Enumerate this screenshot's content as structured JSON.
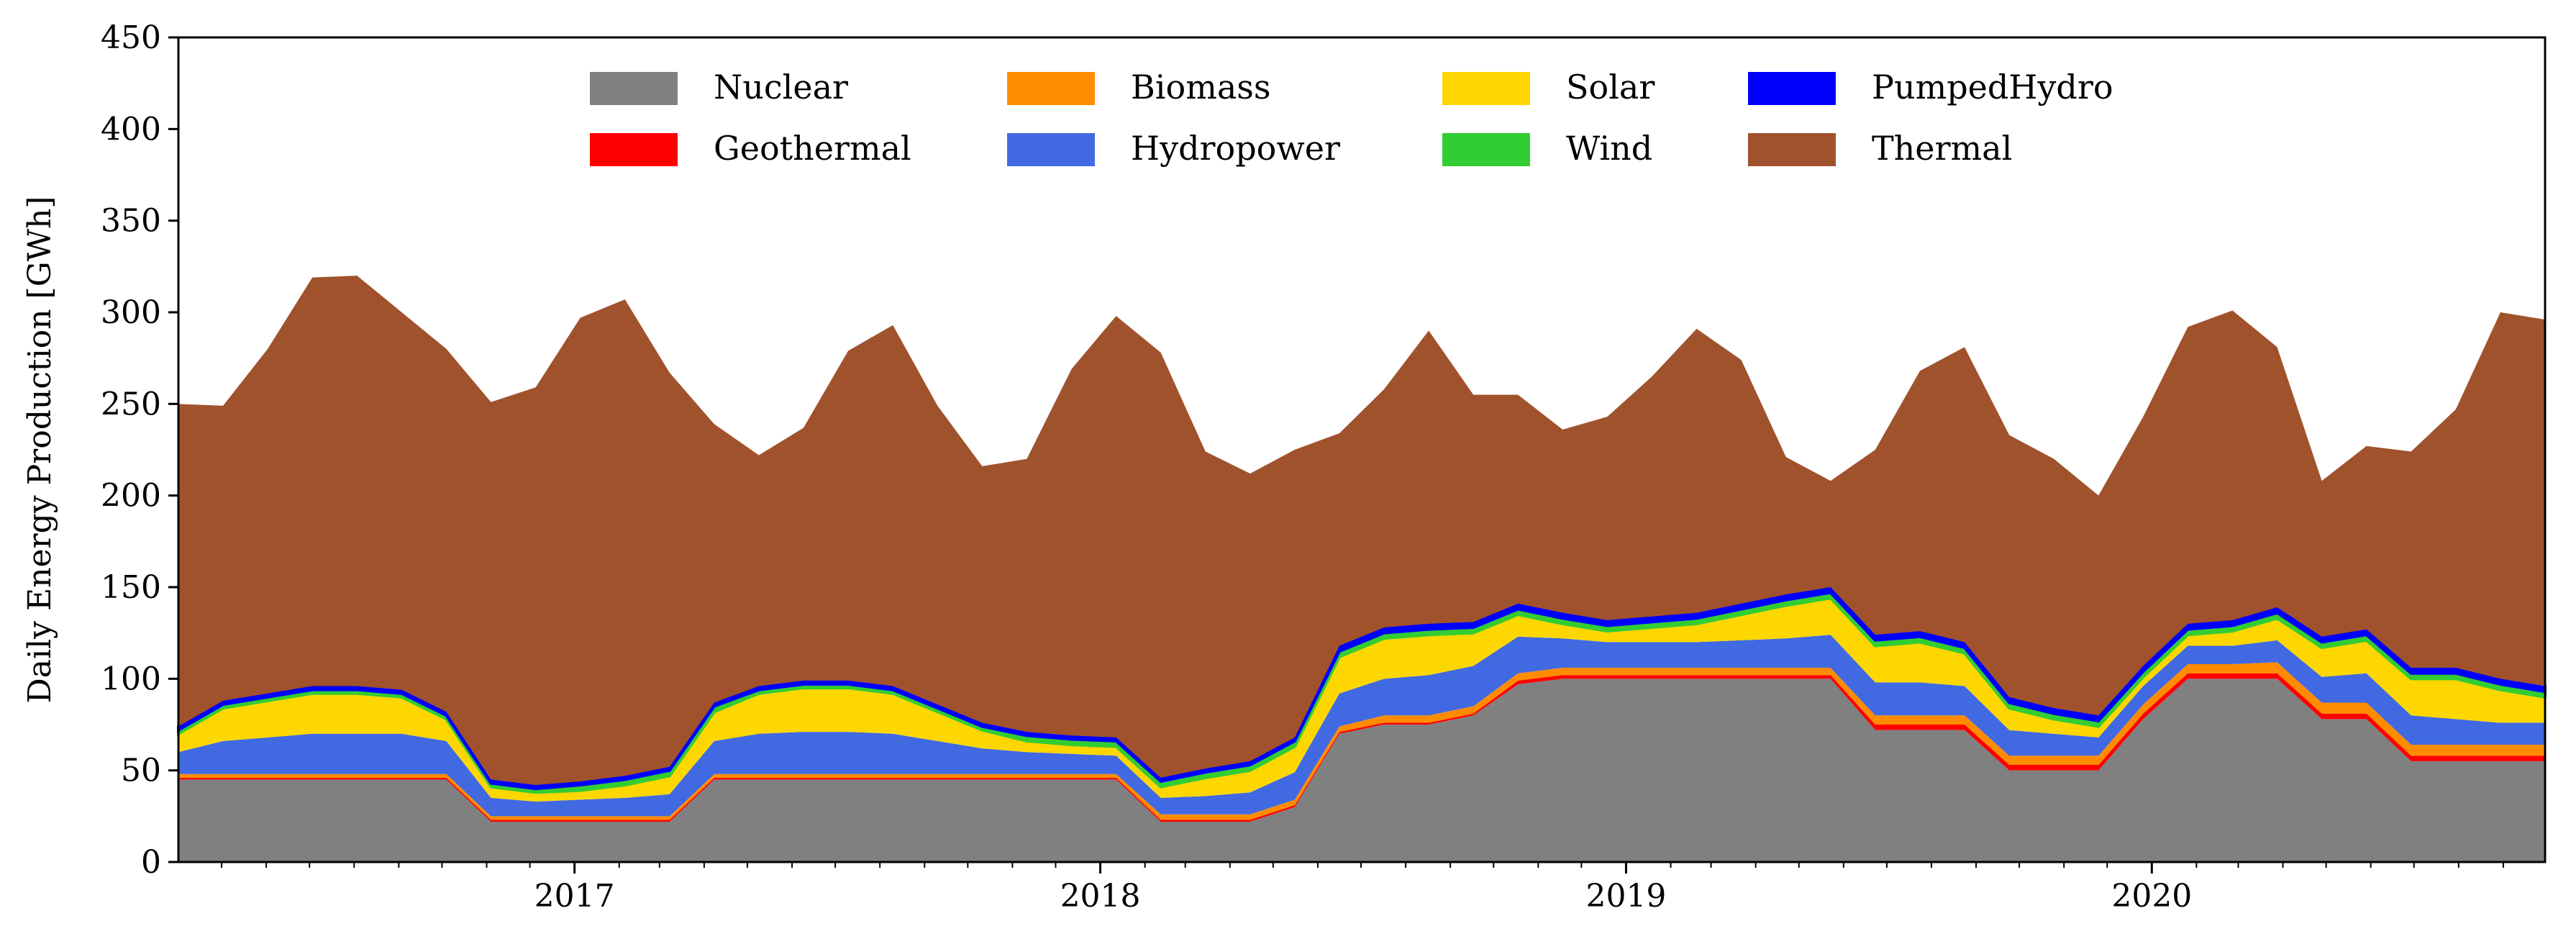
{
  "chart_data": {
    "type": "area",
    "stacked": true,
    "title": "",
    "xlabel": "",
    "ylabel": "Daily Energy Production [GWh]",
    "ylim": [
      0,
      450
    ],
    "xlim": [
      "2016-04-01",
      "2020-09-30"
    ],
    "yticks": [
      0,
      50,
      100,
      150,
      200,
      250,
      300,
      350,
      400,
      450
    ],
    "xticks": [
      {
        "label": "2017",
        "date": "2017-01-01"
      },
      {
        "label": "2018",
        "date": "2018-01-01"
      },
      {
        "label": "2019",
        "date": "2019-01-01"
      },
      {
        "label": "2020",
        "date": "2020-01-01"
      }
    ],
    "grid": false,
    "legend": {
      "placement": "top-center",
      "columns": 4
    },
    "legend_order": [
      "Nuclear",
      "Geothermal",
      "Biomass",
      "Hydropower",
      "Solar",
      "Wind",
      "PumpedHydro",
      "Thermal"
    ],
    "sample_step_months": 1,
    "x": [
      "2016-04",
      "2016-05",
      "2016-06",
      "2016-07",
      "2016-08",
      "2016-09",
      "2016-10",
      "2016-11",
      "2016-12",
      "2017-01",
      "2017-02",
      "2017-03",
      "2017-04",
      "2017-05",
      "2017-06",
      "2017-07",
      "2017-08",
      "2017-09",
      "2017-10",
      "2017-11",
      "2017-12",
      "2018-01",
      "2018-02",
      "2018-03",
      "2018-04",
      "2018-05",
      "2018-06",
      "2018-07",
      "2018-08",
      "2018-09",
      "2018-10",
      "2018-11",
      "2018-12",
      "2019-01",
      "2019-02",
      "2019-03",
      "2019-04",
      "2019-05",
      "2019-06",
      "2019-07",
      "2019-08",
      "2019-09",
      "2019-10",
      "2019-11",
      "2019-12",
      "2020-01",
      "2020-02",
      "2020-03",
      "2020-04",
      "2020-05",
      "2020-06",
      "2020-07",
      "2020-08",
      "2020-09"
    ],
    "series": [
      {
        "name": "Nuclear",
        "color": "#808080",
        "values": [
          45,
          45,
          45,
          45,
          45,
          45,
          45,
          22,
          22,
          22,
          22,
          22,
          45,
          45,
          45,
          45,
          45,
          45,
          45,
          45,
          45,
          45,
          22,
          22,
          22,
          30,
          70,
          75,
          75,
          80,
          97,
          100,
          100,
          100,
          100,
          100,
          100,
          100,
          72,
          72,
          72,
          50,
          50,
          50,
          78,
          100,
          100,
          100,
          78,
          78,
          55,
          55,
          55,
          55
        ]
      },
      {
        "name": "Geothermal",
        "color": "#ff0000",
        "values": [
          1,
          1,
          1,
          1,
          1,
          1,
          1,
          1,
          1,
          1,
          1,
          1,
          1,
          1,
          1,
          1,
          1,
          1,
          1,
          1,
          1,
          1,
          1,
          1,
          1,
          1,
          1,
          1,
          1,
          1,
          2,
          2,
          2,
          2,
          2,
          2,
          2,
          2,
          3,
          3,
          3,
          3,
          3,
          3,
          3,
          3,
          3,
          3,
          3,
          3,
          3,
          3,
          3,
          3
        ]
      },
      {
        "name": "Biomass",
        "color": "#ff8c00",
        "values": [
          2,
          2,
          2,
          2,
          2,
          2,
          2,
          2,
          2,
          2,
          2,
          2,
          2,
          2,
          2,
          2,
          2,
          2,
          2,
          2,
          2,
          2,
          3,
          3,
          3,
          3,
          3,
          4,
          4,
          4,
          4,
          4,
          4,
          4,
          4,
          4,
          4,
          4,
          5,
          5,
          5,
          5,
          5,
          5,
          5,
          5,
          5,
          6,
          6,
          6,
          6,
          6,
          6,
          6
        ]
      },
      {
        "name": "Hydropower",
        "color": "#4169e1",
        "values": [
          12,
          18,
          20,
          22,
          22,
          22,
          18,
          10,
          8,
          9,
          10,
          12,
          18,
          22,
          23,
          23,
          22,
          18,
          14,
          12,
          11,
          10,
          9,
          10,
          12,
          15,
          18,
          20,
          22,
          22,
          20,
          16,
          14,
          14,
          14,
          15,
          16,
          18,
          18,
          18,
          16,
          14,
          12,
          10,
          10,
          10,
          10,
          12,
          14,
          16,
          16,
          14,
          12,
          12
        ]
      },
      {
        "name": "Solar",
        "color": "#ffd700",
        "values": [
          10,
          18,
          20,
          22,
          22,
          20,
          12,
          6,
          5,
          5,
          7,
          10,
          16,
          22,
          24,
          24,
          22,
          16,
          10,
          6,
          5,
          5,
          6,
          10,
          12,
          14,
          20,
          22,
          22,
          18,
          12,
          8,
          6,
          8,
          10,
          14,
          18,
          20,
          20,
          22,
          18,
          12,
          8,
          6,
          5,
          6,
          8,
          12,
          16,
          18,
          20,
          22,
          18,
          14
        ]
      },
      {
        "name": "Wind",
        "color": "#32cd32",
        "values": [
          2,
          2,
          2,
          2,
          2,
          2,
          2,
          2,
          2,
          3,
          3,
          3,
          3,
          2,
          2,
          2,
          2,
          2,
          2,
          3,
          3,
          3,
          3,
          3,
          3,
          3,
          3,
          3,
          3,
          3,
          3,
          3,
          3,
          3,
          3,
          3,
          3,
          3,
          3,
          3,
          3,
          3,
          3,
          3,
          3,
          3,
          3,
          3,
          3,
          3,
          3,
          3,
          3,
          3
        ]
      },
      {
        "name": "PumpedHydro",
        "color": "#0000ff",
        "values": [
          2,
          2,
          2,
          2,
          2,
          2,
          2,
          2,
          2,
          2,
          2,
          2,
          2,
          2,
          2,
          2,
          2,
          2,
          2,
          2,
          2,
          2,
          2,
          2,
          2,
          2,
          3,
          3,
          3,
          3,
          3,
          3,
          3,
          3,
          3,
          3,
          3,
          3,
          3,
          3,
          3,
          3,
          3,
          3,
          3,
          3,
          3,
          3,
          3,
          3,
          3,
          3,
          3,
          3
        ]
      },
      {
        "name": "Thermal",
        "color": "#a0522d",
        "values": [
          176,
          161,
          188,
          223,
          224,
          206,
          198,
          206,
          217,
          253,
          260,
          215,
          152,
          126,
          138,
          180,
          197,
          163,
          140,
          149,
          200,
          230,
          232,
          173,
          157,
          157,
          116,
          130,
          160,
          124,
          114,
          100,
          111,
          131,
          155,
          133,
          75,
          58,
          101,
          142,
          161,
          143,
          136,
          120,
          136,
          162,
          169,
          142,
          85,
          100,
          118,
          141,
          200,
          200
        ]
      }
    ]
  }
}
